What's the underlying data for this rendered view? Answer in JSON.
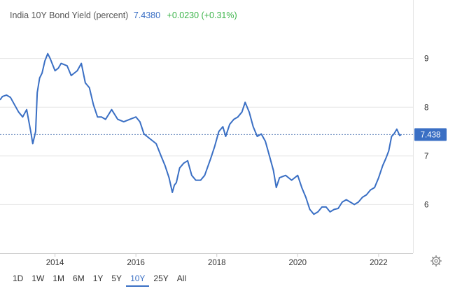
{
  "header": {
    "name": "India 10Y Bond Yield (percent)",
    "price": "7.4380",
    "change": "+0.0230 (+0.31%)"
  },
  "colors": {
    "line": "#3a6fc4",
    "price_label_bg": "#3a6fc4",
    "change_positive": "#3cb44a",
    "grid": "#e6e6e6"
  },
  "range_buttons": [
    {
      "label": "1D",
      "active": false
    },
    {
      "label": "1W",
      "active": false
    },
    {
      "label": "1M",
      "active": false
    },
    {
      "label": "6M",
      "active": false
    },
    {
      "label": "1Y",
      "active": false
    },
    {
      "label": "5Y",
      "active": false
    },
    {
      "label": "10Y",
      "active": true
    },
    {
      "label": "25Y",
      "active": false
    },
    {
      "label": "All",
      "active": false
    }
  ],
  "settings_icon": "gear-icon",
  "chart_data": {
    "type": "line",
    "title": "India 10Y Bond Yield (percent)",
    "xlabel": "",
    "ylabel": "",
    "xlim": [
      2012.64,
      2022.85
    ],
    "ylim": [
      5.0,
      9.8
    ],
    "x_ticks": [
      2014,
      2016,
      2018,
      2020,
      2022
    ],
    "x_tick_labels": [
      "2014",
      "2016",
      "2018",
      "2020",
      "2022"
    ],
    "y_ticks": [
      6,
      7,
      8,
      9
    ],
    "y_tick_labels": [
      "6",
      "7",
      "8",
      "9"
    ],
    "grid": "horizontal",
    "current_value": 7.438,
    "current_value_label": "7.438",
    "series": [
      {
        "values": [
          [
            2012.64,
            8.15
          ],
          [
            2012.7,
            8.22
          ],
          [
            2012.8,
            8.25
          ],
          [
            2012.9,
            8.2
          ],
          [
            2013.0,
            8.05
          ],
          [
            2013.1,
            7.9
          ],
          [
            2013.2,
            7.8
          ],
          [
            2013.3,
            7.95
          ],
          [
            2013.4,
            7.5
          ],
          [
            2013.45,
            7.25
          ],
          [
            2013.52,
            7.5
          ],
          [
            2013.56,
            8.3
          ],
          [
            2013.62,
            8.6
          ],
          [
            2013.68,
            8.7
          ],
          [
            2013.75,
            8.95
          ],
          [
            2013.82,
            9.1
          ],
          [
            2013.88,
            9.0
          ],
          [
            2014.0,
            8.75
          ],
          [
            2014.08,
            8.8
          ],
          [
            2014.15,
            8.9
          ],
          [
            2014.3,
            8.85
          ],
          [
            2014.4,
            8.65
          ],
          [
            2014.55,
            8.75
          ],
          [
            2014.65,
            8.9
          ],
          [
            2014.75,
            8.5
          ],
          [
            2014.85,
            8.4
          ],
          [
            2014.95,
            8.05
          ],
          [
            2015.05,
            7.8
          ],
          [
            2015.15,
            7.8
          ],
          [
            2015.25,
            7.75
          ],
          [
            2015.4,
            7.95
          ],
          [
            2015.55,
            7.75
          ],
          [
            2015.7,
            7.7
          ],
          [
            2015.85,
            7.75
          ],
          [
            2016.0,
            7.8
          ],
          [
            2016.1,
            7.7
          ],
          [
            2016.2,
            7.45
          ],
          [
            2016.35,
            7.35
          ],
          [
            2016.5,
            7.25
          ],
          [
            2016.62,
            7.0
          ],
          [
            2016.72,
            6.8
          ],
          [
            2016.82,
            6.55
          ],
          [
            2016.9,
            6.25
          ],
          [
            2016.95,
            6.4
          ],
          [
            2017.0,
            6.45
          ],
          [
            2017.08,
            6.75
          ],
          [
            2017.18,
            6.85
          ],
          [
            2017.28,
            6.9
          ],
          [
            2017.38,
            6.6
          ],
          [
            2017.48,
            6.5
          ],
          [
            2017.6,
            6.5
          ],
          [
            2017.7,
            6.6
          ],
          [
            2017.85,
            6.95
          ],
          [
            2017.95,
            7.2
          ],
          [
            2018.05,
            7.5
          ],
          [
            2018.15,
            7.6
          ],
          [
            2018.22,
            7.4
          ],
          [
            2018.32,
            7.65
          ],
          [
            2018.42,
            7.75
          ],
          [
            2018.52,
            7.8
          ],
          [
            2018.62,
            7.9
          ],
          [
            2018.7,
            8.1
          ],
          [
            2018.8,
            7.9
          ],
          [
            2018.9,
            7.6
          ],
          [
            2019.0,
            7.4
          ],
          [
            2019.1,
            7.45
          ],
          [
            2019.2,
            7.3
          ],
          [
            2019.3,
            7.0
          ],
          [
            2019.4,
            6.7
          ],
          [
            2019.47,
            6.35
          ],
          [
            2019.55,
            6.55
          ],
          [
            2019.7,
            6.6
          ],
          [
            2019.85,
            6.5
          ],
          [
            2020.0,
            6.6
          ],
          [
            2020.1,
            6.35
          ],
          [
            2020.2,
            6.15
          ],
          [
            2020.3,
            5.9
          ],
          [
            2020.4,
            5.8
          ],
          [
            2020.5,
            5.85
          ],
          [
            2020.6,
            5.95
          ],
          [
            2020.7,
            5.95
          ],
          [
            2020.8,
            5.85
          ],
          [
            2020.9,
            5.9
          ],
          [
            2021.0,
            5.92
          ],
          [
            2021.1,
            6.05
          ],
          [
            2021.2,
            6.1
          ],
          [
            2021.3,
            6.05
          ],
          [
            2021.4,
            6.0
          ],
          [
            2021.5,
            6.05
          ],
          [
            2021.6,
            6.15
          ],
          [
            2021.7,
            6.2
          ],
          [
            2021.8,
            6.3
          ],
          [
            2021.9,
            6.35
          ],
          [
            2022.0,
            6.55
          ],
          [
            2022.1,
            6.8
          ],
          [
            2022.18,
            6.95
          ],
          [
            2022.25,
            7.1
          ],
          [
            2022.32,
            7.4
          ],
          [
            2022.38,
            7.45
          ],
          [
            2022.45,
            7.55
          ],
          [
            2022.52,
            7.42
          ],
          [
            2022.56,
            7.438
          ]
        ]
      }
    ]
  }
}
